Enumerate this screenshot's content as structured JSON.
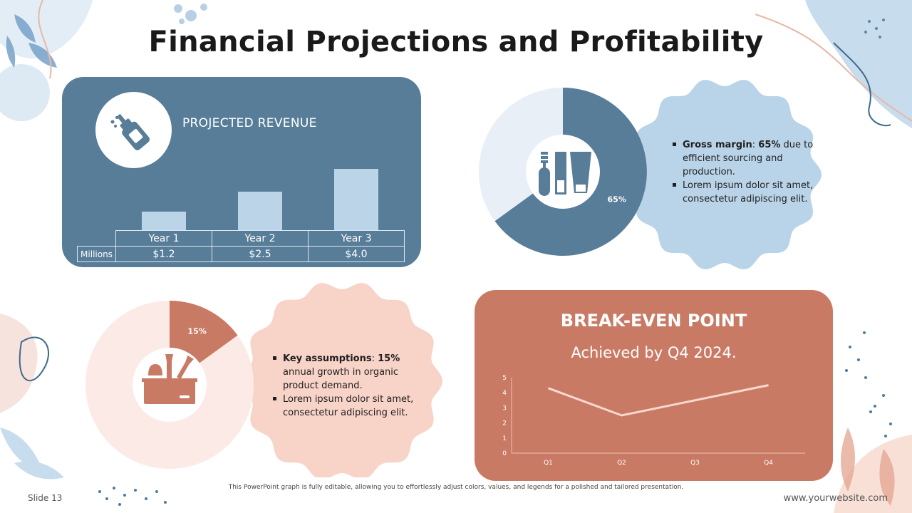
{
  "title": "Financial Projections and Profitability",
  "revenue": {
    "label": "PROJECTED REVENUE",
    "row_header": "Millions",
    "years": [
      "Year 1",
      "Year 2",
      "Year 3"
    ],
    "display_values": [
      "$1.2",
      "$2.5",
      "$4.0"
    ]
  },
  "margin": {
    "pct_label": "65%",
    "bullets": [
      {
        "bold": "Gross margin",
        "sep": ": ",
        "bold2": "65%",
        "rest": " due to efficient sourcing and production."
      },
      {
        "bold": "",
        "sep": "",
        "bold2": "",
        "rest": "Lorem ipsum dolor sit amet, consectetur adipiscing elit."
      }
    ]
  },
  "assumptions": {
    "pct_label": "15%",
    "bullets": [
      {
        "bold": "Key assumptions",
        "sep": ": ",
        "bold2": "15%",
        "rest": " annual growth in organic product demand."
      },
      {
        "bold": "",
        "sep": "",
        "bold2": "",
        "rest": "Lorem ipsum dolor sit amet, consectetur adipiscing elit."
      }
    ]
  },
  "breakeven": {
    "title": "BREAK-EVEN POINT",
    "subtitle": "Achieved by Q4 2024."
  },
  "footer": {
    "note": "This PowerPoint graph is fully editable, allowing you to effortlessly adjust colors, values, and legends for a polished and tailored presentation.",
    "slide": "Slide 13",
    "website": "www.yourwebsite.com"
  },
  "icons": {
    "revenue": "bottle-dropper-icon",
    "margin": "cosmetics-mascara-tube-icon",
    "assumptions": "makeup-kit-brushes-icon"
  },
  "colors": {
    "blue_dark": "#587d98",
    "blue_light": "#bcd4e8",
    "blue_pale": "#e8eff7",
    "terracotta": "#c97a65",
    "peach": "#f8d3c8",
    "peach_pale": "#fbeae6"
  },
  "chart_data": [
    {
      "type": "bar",
      "categories": [
        "Year 1",
        "Year 2",
        "Year 3"
      ],
      "values": [
        1.2,
        2.5,
        4.0
      ],
      "title": "PROJECTED REVENUE",
      "ylabel": "Millions",
      "ylim": [
        0,
        4.0
      ]
    },
    {
      "type": "pie",
      "donut": true,
      "slices": [
        {
          "label": "65%",
          "value": 65
        },
        {
          "label": "",
          "value": 35
        }
      ]
    },
    {
      "type": "pie",
      "donut": true,
      "slices": [
        {
          "label": "15%",
          "value": 15
        },
        {
          "label": "",
          "value": 85
        }
      ]
    },
    {
      "type": "line",
      "categories": [
        "Q1",
        "Q2",
        "Q3",
        "Q4"
      ],
      "values": [
        4.3,
        2.5,
        3.5,
        4.5
      ],
      "ylim": [
        0,
        5
      ],
      "yticks": [
        0,
        1,
        2,
        3,
        4,
        5
      ],
      "grid": false
    }
  ]
}
